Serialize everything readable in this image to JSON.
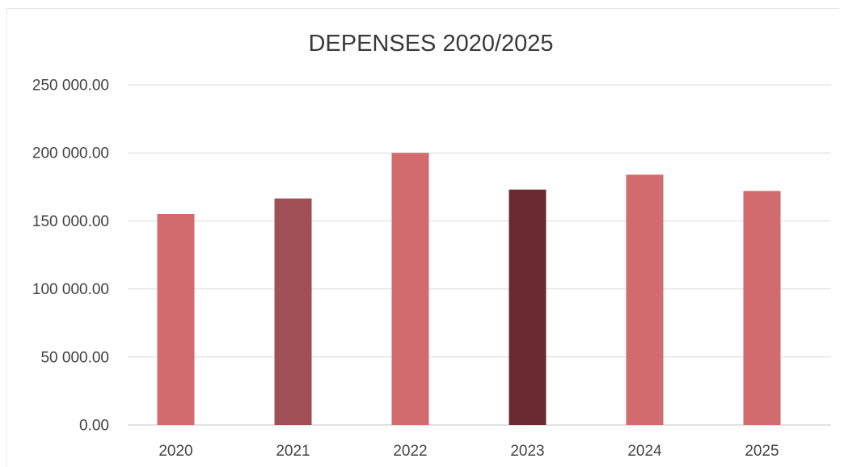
{
  "chart_data": {
    "type": "bar",
    "title": "DEPENSES 2020/2025",
    "xlabel": "",
    "ylabel": "",
    "categories": [
      "2020",
      "2021",
      "2022",
      "2023",
      "2024",
      "2025"
    ],
    "values": [
      155000,
      166500,
      200000,
      173000,
      184000,
      172000
    ],
    "bar_colors": [
      "#d16b6d",
      "#a05055",
      "#d16b6d",
      "#6b2a32",
      "#d16b6d",
      "#d16b6d"
    ],
    "ylim": [
      0,
      250000
    ],
    "y_ticks": [
      0,
      50000,
      100000,
      150000,
      200000,
      250000
    ],
    "y_tick_labels": [
      "0.00",
      "50 000.00",
      "100 000.00",
      "150 000.00",
      "200 000.00",
      "250 000.00"
    ],
    "grid": true,
    "legend": "none"
  }
}
